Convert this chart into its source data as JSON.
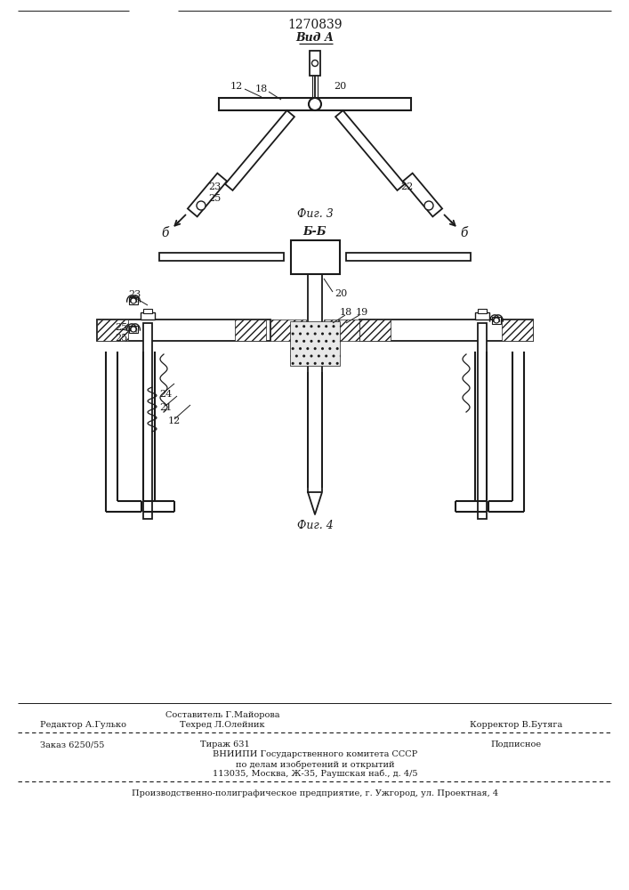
{
  "patent_number": "1270839",
  "fig3_label": "Вид А",
  "fig3_caption": "Фиг. 3",
  "fig4_label": "Б-Б",
  "fig4_caption": "Фиг. 4",
  "bg_color": "#ffffff",
  "line_color": "#1a1a1a"
}
